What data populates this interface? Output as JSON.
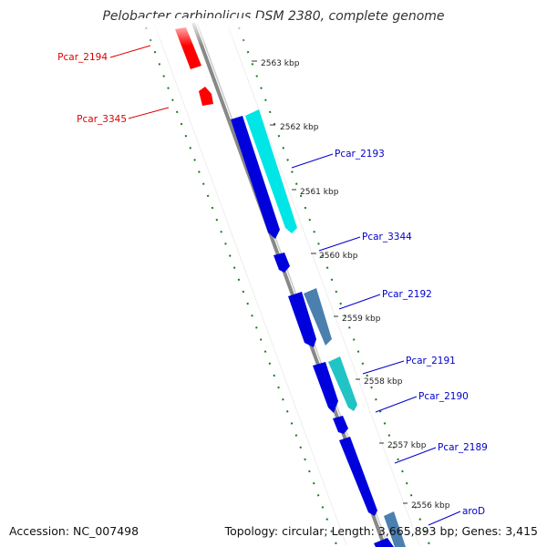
{
  "title": "Pelobacter carbinolicus DSM 2380, complete genome",
  "accession_text": "Accession: NC_007498",
  "topology_text": "Topology: circular; Length: 3,665,893 bp; Genes: 3,415",
  "kbp_ticks": [
    {
      "label": "2563 kbp"
    },
    {
      "label": "2562 kbp"
    },
    {
      "label": "2561 kbp"
    },
    {
      "label": "2560 kbp"
    },
    {
      "label": "2559 kbp"
    },
    {
      "label": "2558 kbp"
    },
    {
      "label": "2557 kbp"
    },
    {
      "label": "2556 kbp"
    }
  ],
  "genes": [
    {
      "label": "Pcar_2194",
      "strand": "reverse",
      "color": "#dd0000"
    },
    {
      "label": "Pcar_3345",
      "strand": "reverse",
      "color": "#dd0000"
    },
    {
      "label": "Pcar_2193",
      "strand": "forward",
      "color": "#0000cc"
    },
    {
      "label": "Pcar_3344",
      "strand": "forward",
      "color": "#0000cc"
    },
    {
      "label": "Pcar_2192",
      "strand": "forward",
      "color": "#0000cc"
    },
    {
      "label": "Pcar_2191",
      "strand": "forward",
      "color": "#0000cc"
    },
    {
      "label": "Pcar_2190",
      "strand": "forward",
      "color": "#0000cc"
    },
    {
      "label": "Pcar_2189",
      "strand": "forward",
      "color": "#0000cc"
    },
    {
      "label": "aroD",
      "strand": "forward",
      "color": "#0000cc"
    }
  ],
  "colors": {
    "reverse_gene": "#ff0000",
    "forward_gene": "#0000dd",
    "cyan_feature": "#00e5e5",
    "steel_feature": "#4a7fb0",
    "backbone": "#888888",
    "tick_dashes": "#1a7a1a"
  }
}
